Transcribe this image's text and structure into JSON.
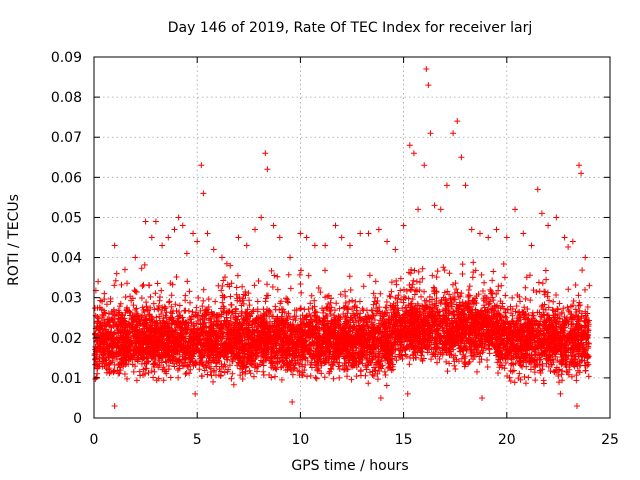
{
  "chart_data": {
    "type": "scatter",
    "title": "Day 146 of 2019, Rate Of TEC Index for receiver larj",
    "xlabel": "GPS time / hours",
    "ylabel": "ROTI / TECUs",
    "xlim": [
      0,
      25
    ],
    "ylim": [
      0,
      0.09
    ],
    "xticks": [
      0,
      5,
      10,
      15,
      20,
      25
    ],
    "xtick_labels": [
      "0",
      "5",
      "10",
      "15",
      "20",
      "25"
    ],
    "yticks": [
      0,
      0.01,
      0.02,
      0.03,
      0.04,
      0.05,
      0.06,
      0.07,
      0.08,
      0.09
    ],
    "ytick_labels": [
      "0",
      "0.01",
      "0.02",
      "0.03",
      "0.04",
      "0.05",
      "0.06",
      "0.07",
      "0.08",
      "0.09"
    ],
    "grid": true,
    "marker": "+",
    "color": "#ff0000",
    "series": [
      {
        "name": "ROTI",
        "x": [
          0.2,
          0.5,
          0.8,
          1.0,
          1.1,
          1.5,
          2.0,
          2.5,
          2.8,
          3.0,
          3.3,
          3.6,
          3.9,
          4.1,
          4.3,
          4.5,
          4.8,
          5.0,
          5.2,
          5.3,
          5.5,
          5.8,
          6.2,
          6.6,
          7.0,
          7.4,
          7.8,
          8.1,
          8.3,
          8.4,
          8.7,
          9.0,
          9.5,
          10.0,
          10.3,
          10.7,
          11.2,
          11.7,
          12.0,
          12.4,
          12.9,
          13.3,
          13.8,
          14.2,
          14.6,
          15.0,
          15.3,
          15.5,
          15.7,
          16.0,
          16.1,
          16.2,
          16.3,
          16.5,
          16.8,
          17.1,
          17.4,
          17.6,
          17.8,
          18.0,
          18.3,
          18.7,
          19.1,
          19.5,
          20.0,
          20.4,
          20.8,
          21.2,
          21.5,
          21.7,
          22.0,
          22.4,
          22.8,
          23.2,
          23.5,
          23.6,
          23.8,
          24.0,
          1.0,
          4.9,
          9.6,
          13.9,
          15.2,
          18.8,
          22.6,
          23.4
        ],
        "y": [
          0.034,
          0.031,
          0.029,
          0.043,
          0.036,
          0.037,
          0.04,
          0.049,
          0.045,
          0.049,
          0.043,
          0.045,
          0.047,
          0.05,
          0.048,
          0.041,
          0.046,
          0.044,
          0.063,
          0.056,
          0.046,
          0.042,
          0.04,
          0.038,
          0.045,
          0.043,
          0.047,
          0.05,
          0.066,
          0.062,
          0.048,
          0.045,
          0.04,
          0.046,
          0.045,
          0.043,
          0.043,
          0.048,
          0.045,
          0.043,
          0.046,
          0.046,
          0.047,
          0.044,
          0.042,
          0.048,
          0.068,
          0.066,
          0.052,
          0.063,
          0.087,
          0.083,
          0.071,
          0.053,
          0.052,
          0.058,
          0.071,
          0.074,
          0.065,
          0.058,
          0.047,
          0.046,
          0.045,
          0.047,
          0.045,
          0.052,
          0.046,
          0.043,
          0.057,
          0.051,
          0.048,
          0.05,
          0.045,
          0.044,
          0.063,
          0.061,
          0.04,
          0.033,
          0.003,
          0.006,
          0.004,
          0.005,
          0.006,
          0.005,
          0.006,
          0.003
        ]
      }
    ]
  }
}
